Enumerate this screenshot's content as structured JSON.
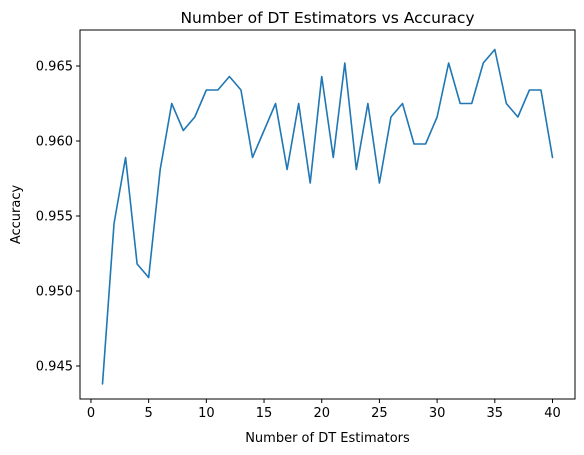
{
  "chart_data": {
    "type": "line",
    "title": "Number of DT Estimators vs Accuracy",
    "xlabel": "Number of DT Estimators",
    "ylabel": "Accuracy",
    "xlim": [
      -0.95,
      41.95
    ],
    "ylim": [
      0.9428,
      0.9674
    ],
    "xticks": [
      0,
      5,
      10,
      15,
      20,
      25,
      30,
      35,
      40
    ],
    "xtick_labels": [
      "0",
      "5",
      "10",
      "15",
      "20",
      "25",
      "30",
      "35",
      "40"
    ],
    "yticks": [
      0.945,
      0.95,
      0.955,
      0.96,
      0.965
    ],
    "ytick_labels": [
      "0.945",
      "0.950",
      "0.955",
      "0.960",
      "0.965"
    ],
    "grid": false,
    "legend": false,
    "series": [
      {
        "color": "#1f77b4",
        "x": [
          1,
          2,
          3,
          4,
          5,
          6,
          7,
          8,
          9,
          10,
          11,
          12,
          13,
          14,
          15,
          16,
          17,
          18,
          19,
          20,
          21,
          22,
          23,
          24,
          25,
          26,
          27,
          28,
          29,
          30,
          31,
          32,
          33,
          34,
          35,
          36,
          37,
          38,
          39,
          40
        ],
        "y": [
          0.9438,
          0.9545,
          0.9589,
          0.9518,
          0.9509,
          0.9581,
          0.9625,
          0.9607,
          0.9616,
          0.9634,
          0.9634,
          0.9643,
          0.9634,
          0.9589,
          0.9607,
          0.9625,
          0.9581,
          0.9625,
          0.9572,
          0.9643,
          0.9589,
          0.9652,
          0.9581,
          0.9625,
          0.9572,
          0.9616,
          0.9625,
          0.9598,
          0.9598,
          0.9616,
          0.9652,
          0.9625,
          0.9625,
          0.9652,
          0.9661,
          0.9625,
          0.9616,
          0.9634,
          0.9634,
          0.9589
        ]
      }
    ]
  }
}
